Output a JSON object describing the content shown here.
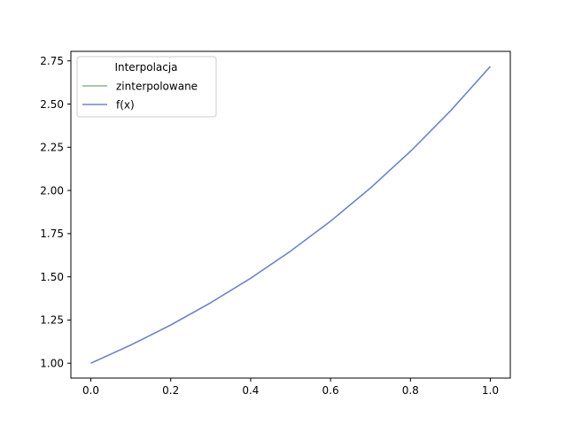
{
  "chart_data": {
    "type": "line",
    "title": "",
    "xlabel": "",
    "ylabel": "",
    "xlim": [
      -0.05,
      1.05
    ],
    "ylim": [
      0.914,
      2.805
    ],
    "x_ticks": [
      0.0,
      0.2,
      0.4,
      0.6,
      0.8,
      1.0
    ],
    "x_tick_labels": [
      "0.0",
      "0.2",
      "0.4",
      "0.6",
      "0.8",
      "1.0"
    ],
    "y_ticks": [
      1.0,
      1.25,
      1.5,
      1.75,
      2.0,
      2.25,
      2.5,
      2.75
    ],
    "y_tick_labels": [
      "1.00",
      "1.25",
      "1.50",
      "1.75",
      "2.00",
      "2.25",
      "2.50",
      "2.75"
    ],
    "grid": false,
    "legend": {
      "title": "Interpolacja",
      "placement": "upper left"
    },
    "series": [
      {
        "name": "zinterpolowane",
        "color": "#8fb08f",
        "x": [
          0.0,
          0.1,
          0.2,
          0.3,
          0.4,
          0.5,
          0.6,
          0.7,
          0.8,
          0.9,
          1.0
        ],
        "y": [
          1.0,
          1.105,
          1.221,
          1.35,
          1.492,
          1.649,
          1.822,
          2.014,
          2.226,
          2.46,
          2.718
        ]
      },
      {
        "name": "f(x)",
        "color": "#6f86c8",
        "x": [
          0.0,
          0.1,
          0.2,
          0.3,
          0.4,
          0.5,
          0.6,
          0.7,
          0.8,
          0.9,
          1.0
        ],
        "y": [
          1.0,
          1.105,
          1.221,
          1.35,
          1.492,
          1.649,
          1.822,
          2.014,
          2.226,
          2.46,
          2.718
        ]
      }
    ]
  }
}
